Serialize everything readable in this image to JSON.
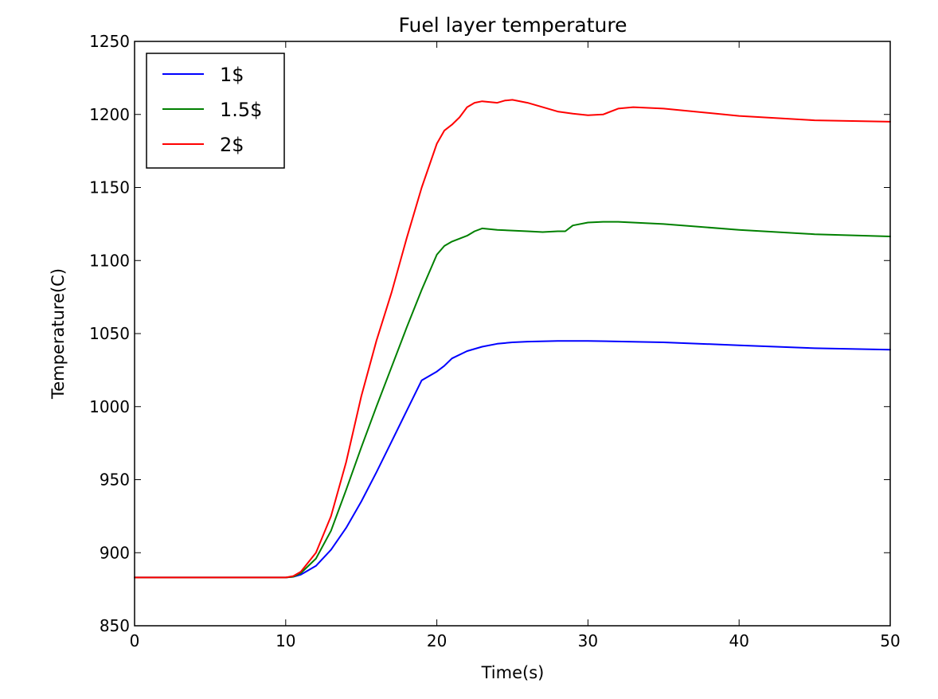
{
  "chart_data": {
    "type": "line",
    "title": "Fuel layer temperature",
    "xlabel": "Time(s)",
    "ylabel": "Temperature(C)",
    "xlim": [
      0,
      50
    ],
    "ylim": [
      850,
      1250
    ],
    "xticks": [
      0,
      10,
      20,
      30,
      40,
      50
    ],
    "yticks": [
      850,
      900,
      950,
      1000,
      1050,
      1100,
      1150,
      1200,
      1250
    ],
    "grid": false,
    "legend_position": "top-left",
    "series": [
      {
        "name": "1$",
        "color": "#0000ff",
        "x": [
          0,
          5,
          10,
          10.5,
          11,
          12,
          13,
          14,
          15,
          16,
          17,
          18,
          19,
          20,
          20.5,
          21,
          22,
          23,
          24,
          25,
          26,
          28,
          30,
          35,
          40,
          45,
          50
        ],
        "y": [
          883,
          883,
          883,
          883.5,
          885,
          891,
          902,
          917,
          935,
          955,
          976,
          997,
          1018,
          1024,
          1028,
          1033,
          1038,
          1041,
          1043,
          1044,
          1044.5,
          1045,
          1045,
          1044,
          1042,
          1040,
          1039
        ]
      },
      {
        "name": "1.5$",
        "color": "#008000",
        "x": [
          0,
          5,
          10,
          10.5,
          11,
          12,
          13,
          14,
          15,
          16,
          17,
          18,
          19,
          20,
          20.5,
          21,
          22,
          22.5,
          23,
          24,
          26,
          27,
          28,
          28.5,
          29,
          30,
          31,
          32,
          35,
          40,
          45,
          50
        ],
        "y": [
          883,
          883,
          883,
          883.5,
          886,
          896,
          915,
          943,
          972,
          1000,
          1027,
          1054,
          1080,
          1104,
          1110,
          1113,
          1117,
          1120,
          1122,
          1121,
          1120,
          1119.5,
          1120,
          1120,
          1124,
          1126,
          1126.5,
          1126.5,
          1125,
          1121,
          1118,
          1116.5
        ]
      },
      {
        "name": "2$",
        "color": "#ff0000",
        "x": [
          0,
          5,
          10,
          10.5,
          11,
          12,
          13,
          14,
          15,
          16,
          17,
          18,
          19,
          20,
          20.5,
          21,
          21.5,
          22,
          22.5,
          23,
          24,
          24.5,
          25,
          26,
          27,
          28,
          29,
          30,
          31,
          32,
          33,
          35,
          40,
          45,
          50
        ],
        "y": [
          883,
          883,
          883,
          884,
          887,
          900,
          925,
          962,
          1007,
          1045,
          1078,
          1115,
          1150,
          1180,
          1189,
          1193,
          1198,
          1205,
          1208,
          1209,
          1208,
          1209.5,
          1210,
          1208,
          1205,
          1202,
          1200.5,
          1199.5,
          1200,
          1204,
          1205,
          1204,
          1199,
          1196,
          1195
        ]
      }
    ]
  }
}
